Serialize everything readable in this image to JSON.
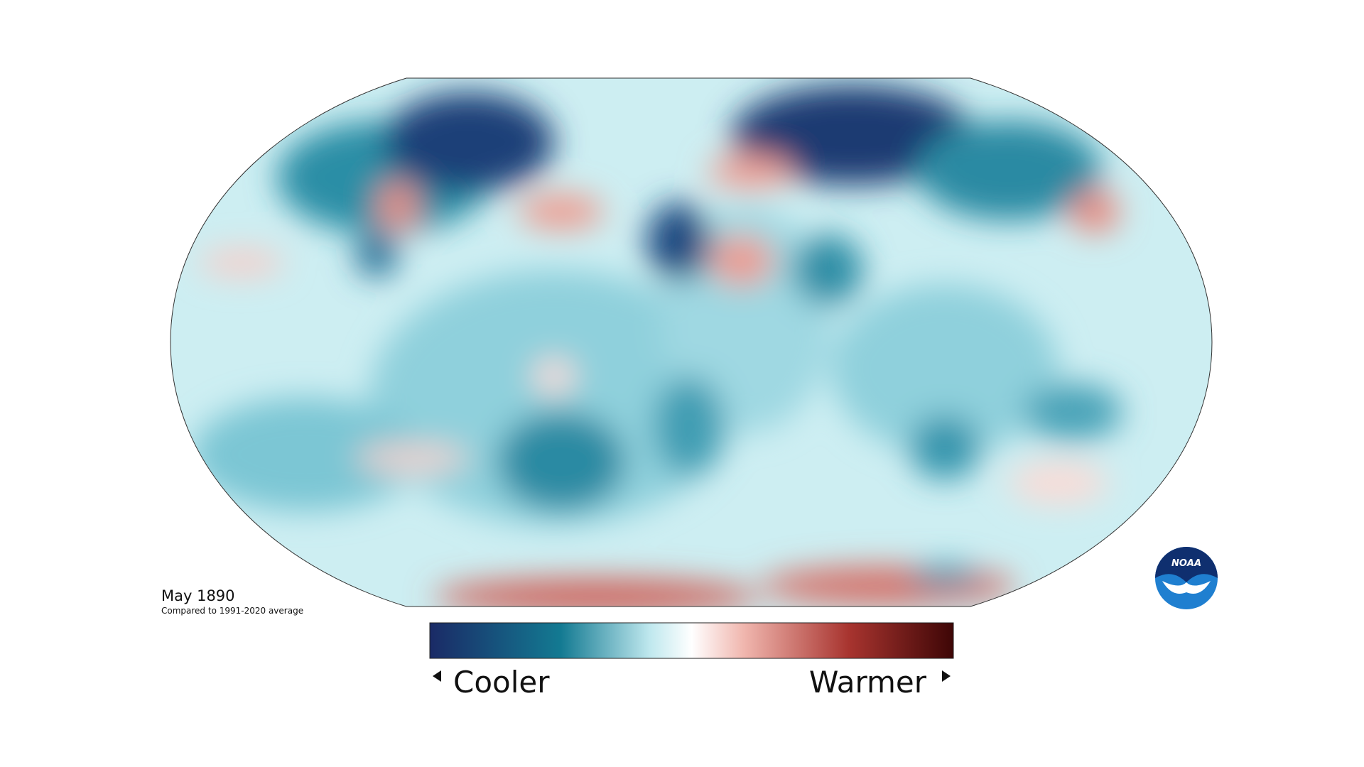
{
  "map": {
    "date": "May 1890",
    "subtitle": "Compared to 1991-2020 average"
  },
  "legend": {
    "low": "Cooler",
    "high": "Warmer"
  },
  "logo": "NOAA"
}
